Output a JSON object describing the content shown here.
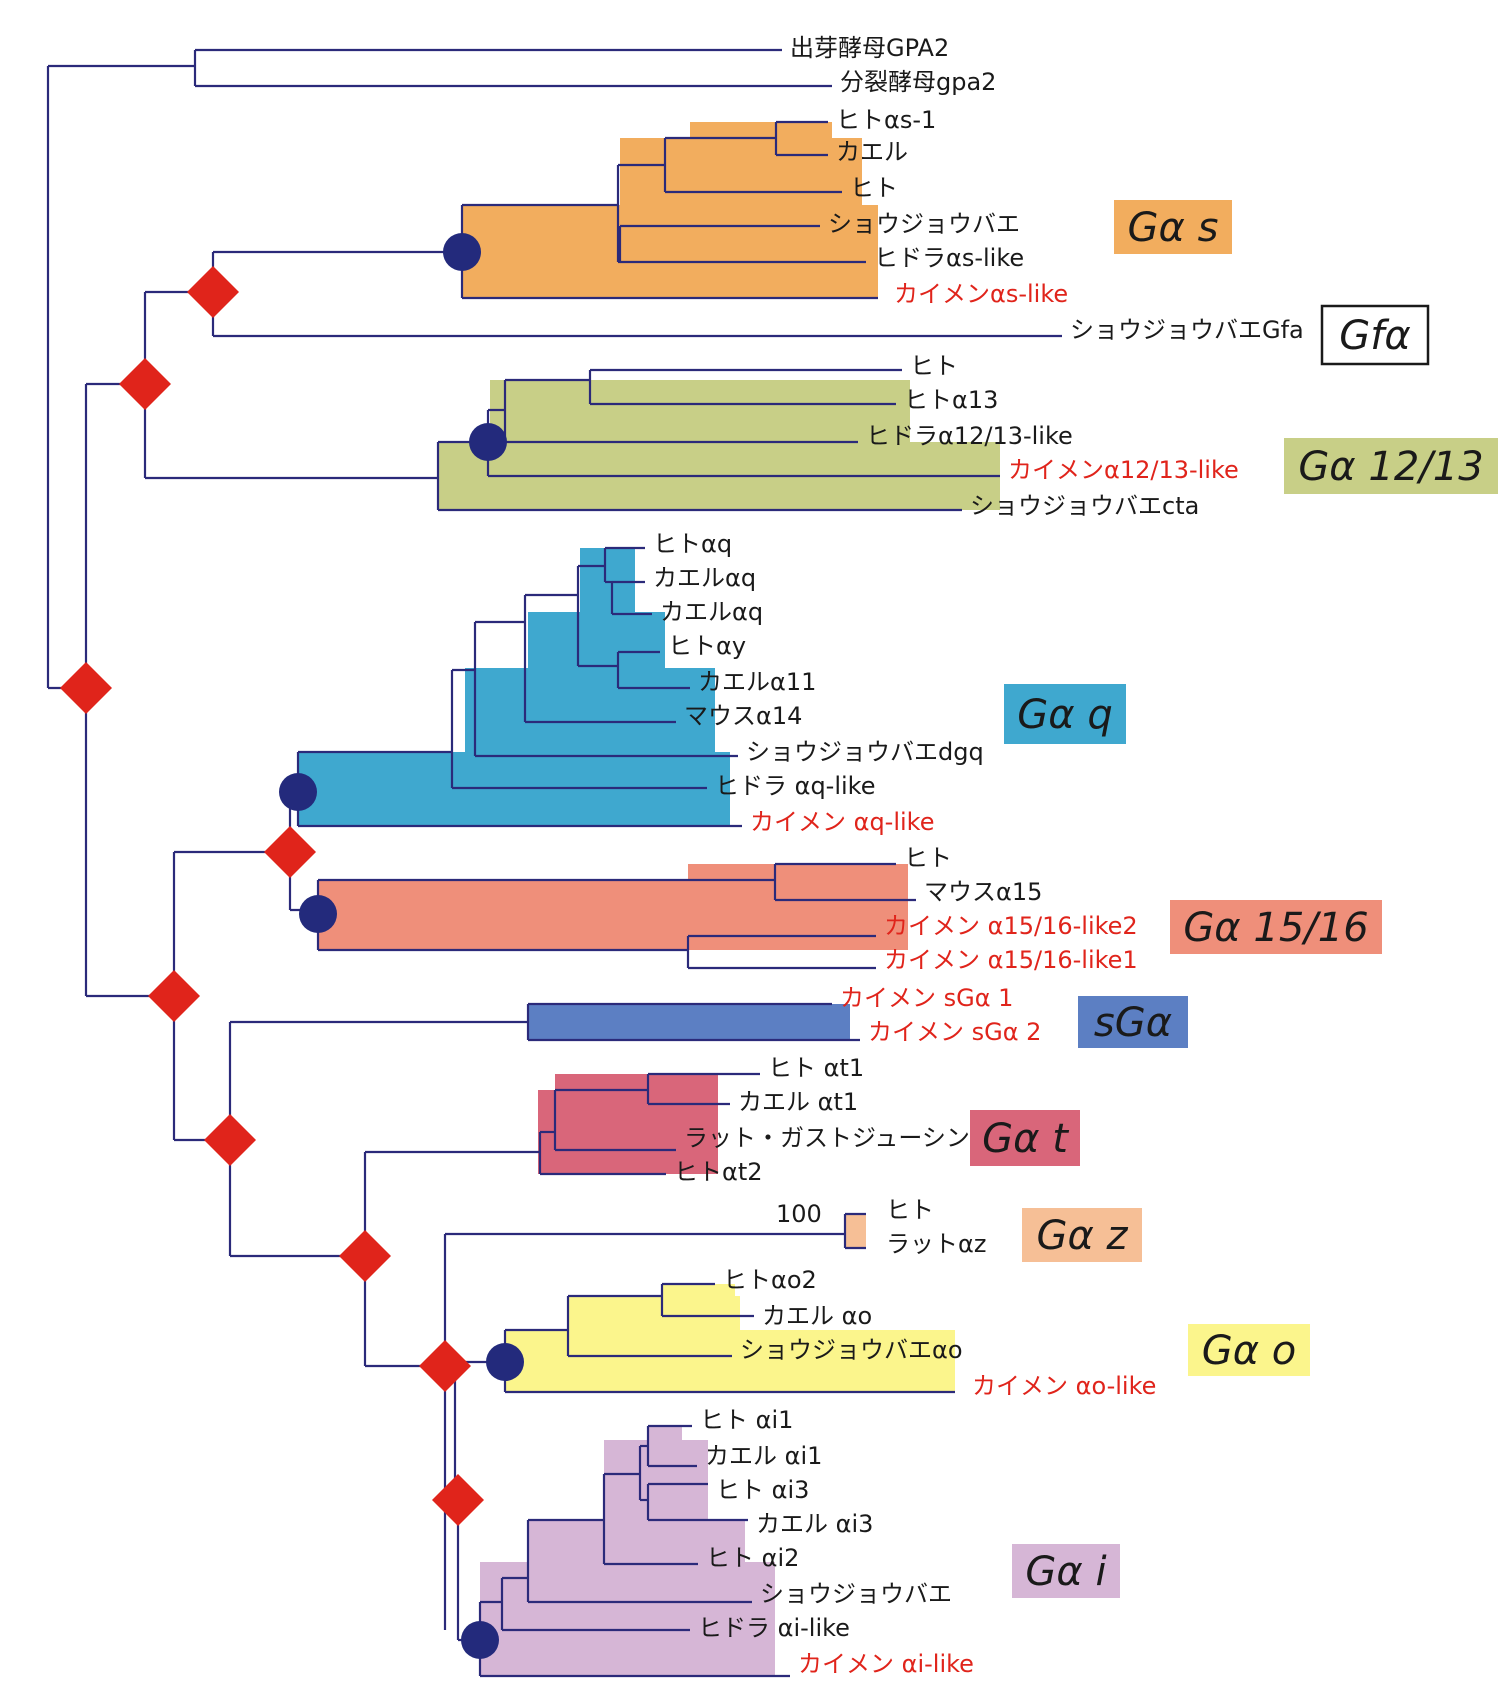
{
  "colors": {
    "line": "#2b2a7a",
    "sponge_text": "#e0241b",
    "normal_text": "#1a1a1a",
    "diamond": "#e0241b",
    "circle": "#232a7c",
    "box_text": "#1a1a1a"
  },
  "leaves": [
    {
      "id": "l1",
      "label": "出芽酵母GPA2",
      "sponge": false
    },
    {
      "id": "l2",
      "label": "分裂酵母gpa2",
      "sponge": false
    },
    {
      "id": "l3",
      "label": "ヒトαs-1",
      "sponge": false
    },
    {
      "id": "l4",
      "label": "カエル",
      "sponge": false
    },
    {
      "id": "l5",
      "label": "ヒト",
      "sponge": false
    },
    {
      "id": "l6",
      "label": "ショウジョウバエ",
      "sponge": false
    },
    {
      "id": "l7",
      "label": "ヒドラαs-like",
      "sponge": false
    },
    {
      "id": "l8",
      "label": "カイメンαs-like",
      "sponge": true
    },
    {
      "id": "l9",
      "label": "ショウジョウバエGfa",
      "sponge": false
    },
    {
      "id": "l10",
      "label": "ヒト",
      "sponge": false
    },
    {
      "id": "l11",
      "label": "ヒトα13",
      "sponge": false
    },
    {
      "id": "l12",
      "label": "ヒドラα12/13-like",
      "sponge": false
    },
    {
      "id": "l13",
      "label": "カイメンα12/13-like",
      "sponge": true
    },
    {
      "id": "l14",
      "label": "ショウジョウバエcta",
      "sponge": false
    },
    {
      "id": "l15",
      "label": "ヒトαq",
      "sponge": false
    },
    {
      "id": "l16",
      "label": "カエルαq",
      "sponge": false
    },
    {
      "id": "l17",
      "label": "カエルαq",
      "sponge": false
    },
    {
      "id": "l18",
      "label": "ヒトαy",
      "sponge": false
    },
    {
      "id": "l19",
      "label": "カエルα11",
      "sponge": false
    },
    {
      "id": "l20",
      "label": "マウスα14",
      "sponge": false
    },
    {
      "id": "l21",
      "label": "ショウジョウバエdgq",
      "sponge": false
    },
    {
      "id": "l22",
      "label": "ヒドラ αq-like",
      "sponge": false
    },
    {
      "id": "l23",
      "label": "カイメン αq-like",
      "sponge": true
    },
    {
      "id": "l24",
      "label": "ヒト",
      "sponge": false
    },
    {
      "id": "l25",
      "label": "マウスα15",
      "sponge": false
    },
    {
      "id": "l26",
      "label": "カイメン α15/16-like2",
      "sponge": true
    },
    {
      "id": "l27",
      "label": "カイメン α15/16-like1",
      "sponge": true
    },
    {
      "id": "l28",
      "label": "カイメン sGα 1",
      "sponge": true
    },
    {
      "id": "l29",
      "label": "カイメン sGα 2",
      "sponge": true
    },
    {
      "id": "l30",
      "label": "ヒト αt1",
      "sponge": false
    },
    {
      "id": "l31",
      "label": "カエル αt1",
      "sponge": false
    },
    {
      "id": "l32",
      "label": "ラット・ガストジューシン",
      "sponge": false
    },
    {
      "id": "l33",
      "label": "ヒトαt2",
      "sponge": false
    },
    {
      "id": "l34",
      "label": "ヒト",
      "sponge": false
    },
    {
      "id": "l35",
      "label": "ラットαz",
      "sponge": false
    },
    {
      "id": "l36",
      "label": "ヒトαo2",
      "sponge": false
    },
    {
      "id": "l37",
      "label": "カエル αo",
      "sponge": false
    },
    {
      "id": "l38",
      "label": "ショウジョウバエαo",
      "sponge": false
    },
    {
      "id": "l39",
      "label": "カイメン αo-like",
      "sponge": true
    },
    {
      "id": "l40",
      "label": "ヒト αi1",
      "sponge": false
    },
    {
      "id": "l41",
      "label": "カエル αi1",
      "sponge": false
    },
    {
      "id": "l42",
      "label": "ヒト αi3",
      "sponge": false
    },
    {
      "id": "l43",
      "label": "カエル αi3",
      "sponge": false
    },
    {
      "id": "l44",
      "label": "ヒト αi2",
      "sponge": false
    },
    {
      "id": "l45",
      "label": "ショウジョウバエ",
      "sponge": false
    },
    {
      "id": "l46",
      "label": "ヒドラ αi-like",
      "sponge": false
    },
    {
      "id": "l47",
      "label": "カイメン αi-like",
      "sponge": true
    }
  ],
  "groups": [
    {
      "id": "gs",
      "label": "Gα s",
      "color": "#f2ad5e",
      "boxed": false
    },
    {
      "id": "gf",
      "label": "Gfα",
      "color": "#ffffff",
      "boxed": true
    },
    {
      "id": "g1213",
      "label": "Gα 12/13",
      "color": "#c8cf87",
      "boxed": false
    },
    {
      "id": "gq",
      "label": "Gα q",
      "color": "#3fa8cf",
      "boxed": false
    },
    {
      "id": "g1516",
      "label": "Gα 15/16",
      "color": "#ef8f7a",
      "boxed": false
    },
    {
      "id": "sg",
      "label": "sGα",
      "color": "#5c7fc3",
      "boxed": false
    },
    {
      "id": "gt",
      "label": "Gα t",
      "color": "#d9667a",
      "boxed": false
    },
    {
      "id": "gz",
      "label": "Gα z",
      "color": "#f6bf96",
      "boxed": false
    },
    {
      "id": "go",
      "label": "Gα o",
      "color": "#fbf58c",
      "boxed": false
    },
    {
      "id": "gi",
      "label": "Gα i",
      "color": "#d6b6d6",
      "boxed": false
    }
  ],
  "bootstrap_label": "100"
}
